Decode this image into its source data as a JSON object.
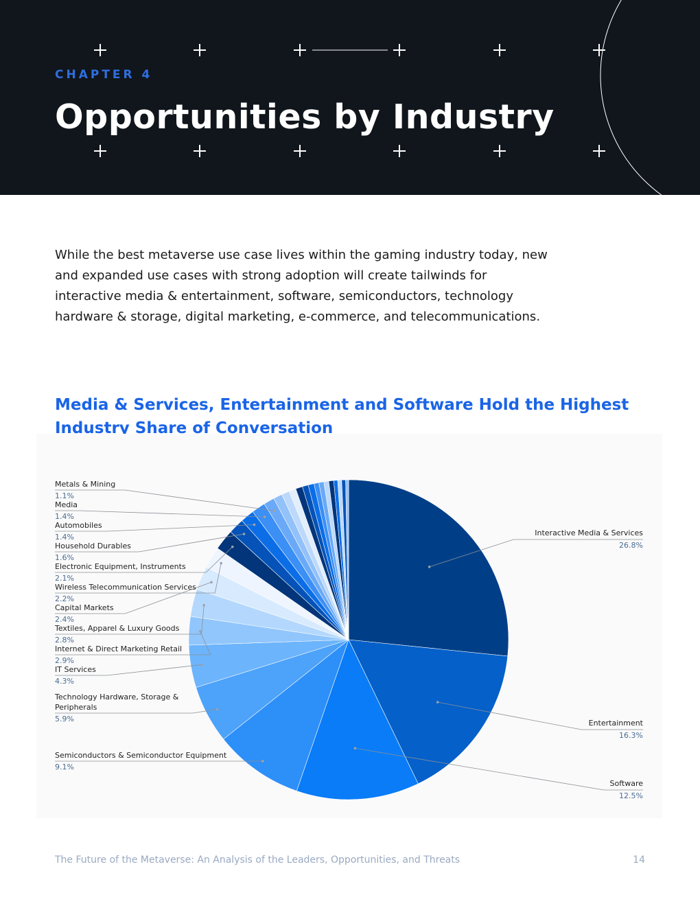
{
  "header": {
    "chapter": "CHAPTER 4",
    "title": "Opportunities by Industry"
  },
  "intro": "While the best metaverse use case lives within the gaming industry today, new and expanded use cases with strong adoption will create tailwinds for interactive media & entertainment, software, semiconductors, technology hardware & storage, digital marketing, e-commerce, and telecommunications.",
  "chart_title": "Media & Services, Entertainment and Software Hold the Highest Industry Share of Conversation",
  "chart_data": {
    "type": "pie",
    "title": "Media & Services, Entertainment and Software Hold the Highest Industry Share of Conversation",
    "unit": "%",
    "slices": [
      {
        "label": "Interactive Media & Services",
        "value": 26.8,
        "value_label": "26.8%",
        "color": "#003f88"
      },
      {
        "label": "Entertainment",
        "value": 16.3,
        "value_label": "16.3%",
        "color": "#0560c9"
      },
      {
        "label": "Software",
        "value": 12.5,
        "value_label": "12.5%",
        "color": "#0a7cf7"
      },
      {
        "label": "Semiconductors & Semiconductor Equipment",
        "value": 9.1,
        "value_label": "9.1%",
        "color": "#2d8ff8"
      },
      {
        "label": "Technology Hardware, Storage & Peripherals",
        "value": 5.9,
        "value_label": "5.9%",
        "color": "#4da2fa"
      },
      {
        "label": "IT Services",
        "value": 4.3,
        "value_label": "4.3%",
        "color": "#6cb4fb"
      },
      {
        "label": "Internet & Direct Marketing Retail",
        "value": 2.9,
        "value_label": "2.9%",
        "color": "#91c6fc"
      },
      {
        "label": "Textiles, Apparel & Luxury Goods",
        "value": 2.8,
        "value_label": "2.8%",
        "color": "#b4d8fd"
      },
      {
        "label": "Capital Markets",
        "value": 2.4,
        "value_label": "2.4%",
        "color": "#d8eafe"
      },
      {
        "label": "Wireless Telecommunication Services",
        "value": 2.2,
        "value_label": "2.2%",
        "color": "#eef5ff"
      },
      {
        "label": "Electronic Equipment, Instruments",
        "value": 2.1,
        "value_label": "2.1%",
        "color": "#02357a"
      },
      {
        "label": "Household Durables",
        "value": 1.6,
        "value_label": "1.6%",
        "color": "#0553b8"
      },
      {
        "label": "Automobiles",
        "value": 1.4,
        "value_label": "1.4%",
        "color": "#0b6ee6"
      },
      {
        "label": "Media",
        "value": 1.4,
        "value_label": "1.4%",
        "color": "#3b8ff5"
      },
      {
        "label": "Metals & Mining",
        "value": 1.1,
        "value_label": "1.1%",
        "color": "#6aa9f7"
      },
      {
        "label": "",
        "value": 0.9,
        "color": "#93c1f9"
      },
      {
        "label": "",
        "value": 0.8,
        "color": "#bcd9fb"
      },
      {
        "label": "",
        "value": 0.7,
        "color": "#e2eefd"
      },
      {
        "label": "",
        "value": 0.7,
        "color": "#02357a"
      },
      {
        "label": "",
        "value": 0.6,
        "color": "#0553b8"
      },
      {
        "label": "",
        "value": 0.6,
        "color": "#0b6ee6"
      },
      {
        "label": "",
        "value": 0.5,
        "color": "#3b8ff5"
      },
      {
        "label": "",
        "value": 0.5,
        "color": "#6aa9f7"
      },
      {
        "label": "",
        "value": 0.5,
        "color": "#bcd9fb"
      },
      {
        "label": "",
        "value": 0.5,
        "color": "#02357a"
      },
      {
        "label": "",
        "value": 0.4,
        "color": "#0b6ee6"
      },
      {
        "label": "",
        "value": 0.4,
        "color": "#bcd9fb"
      },
      {
        "label": "",
        "value": 0.4,
        "color": "#0553b8"
      },
      {
        "label": "",
        "value": 0.3,
        "color": "#93c1f9"
      }
    ]
  },
  "footer": {
    "text": "The Future of the Metaverse: An Analysis of the Leaders, Opportunities, and Threats",
    "page": "14"
  }
}
